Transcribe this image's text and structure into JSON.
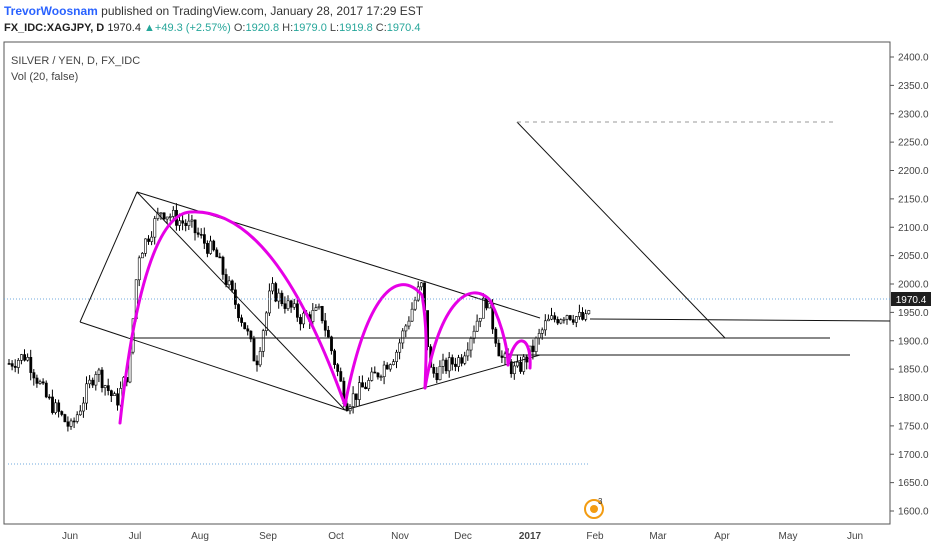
{
  "header": {
    "author": "TrevorWoosnam",
    "published_text": " published on TradingView.com, January 28, 2017 17:29 EST"
  },
  "ticker": {
    "symbol": "FX_IDC:XAGJPY, D",
    "last": "1970.4",
    "change": "+49.3 (+2.57%)",
    "open_label": "O:",
    "open": "1920.8",
    "high_label": "H:",
    "high": "1979.0",
    "low_label": "L:",
    "low": "1919.8",
    "close_label": "C:",
    "close": "1970.4"
  },
  "legend": {
    "title": "SILVER / YEN, D, FX_IDC",
    "volume": "Vol (20, false)"
  },
  "colors": {
    "up_candle": "#ffffff",
    "down_candle": "#000000",
    "pattern": "#e600e6",
    "price_line": "#6fa8dc",
    "price_label_bg": "#1e1e1e"
  },
  "chart_data": {
    "type": "candlestick",
    "y_axis": {
      "range": [
        1590,
        2420
      ],
      "ticks": [
        "1600.0",
        "1650.0",
        "1700.0",
        "1750.0",
        "1800.0",
        "1850.0",
        "1900.0",
        "1950.0",
        "2000.0",
        "2050.0",
        "2100.0",
        "2150.0",
        "2200.0",
        "2250.0",
        "2300.0",
        "2350.0",
        "2400.0"
      ]
    },
    "x_axis": {
      "labels": [
        "Jun",
        "Jul",
        "Aug",
        "Sep",
        "Oct",
        "Nov",
        "Dec",
        "2017",
        "Feb",
        "Mar",
        "Apr",
        "May",
        "Jun"
      ]
    },
    "last_price": "1970.4",
    "ohlc_key_points": [
      {
        "date": "mid May 2016",
        "close": 1860
      },
      {
        "date": "early Jun 2016",
        "close": 1740
      },
      {
        "date": "mid Jul 2016",
        "close": 2140
      },
      {
        "date": "early Sep 2016",
        "close": 1860
      },
      {
        "date": "early Oct 2016",
        "close": 1775
      },
      {
        "date": "early Nov 2016",
        "close": 2010
      },
      {
        "date": "early Dec 2016",
        "close": 1975
      },
      {
        "date": "late Dec 2016",
        "close": 1840
      },
      {
        "date": "27 Jan 2017",
        "close": 1970.4
      }
    ],
    "grid": false
  }
}
